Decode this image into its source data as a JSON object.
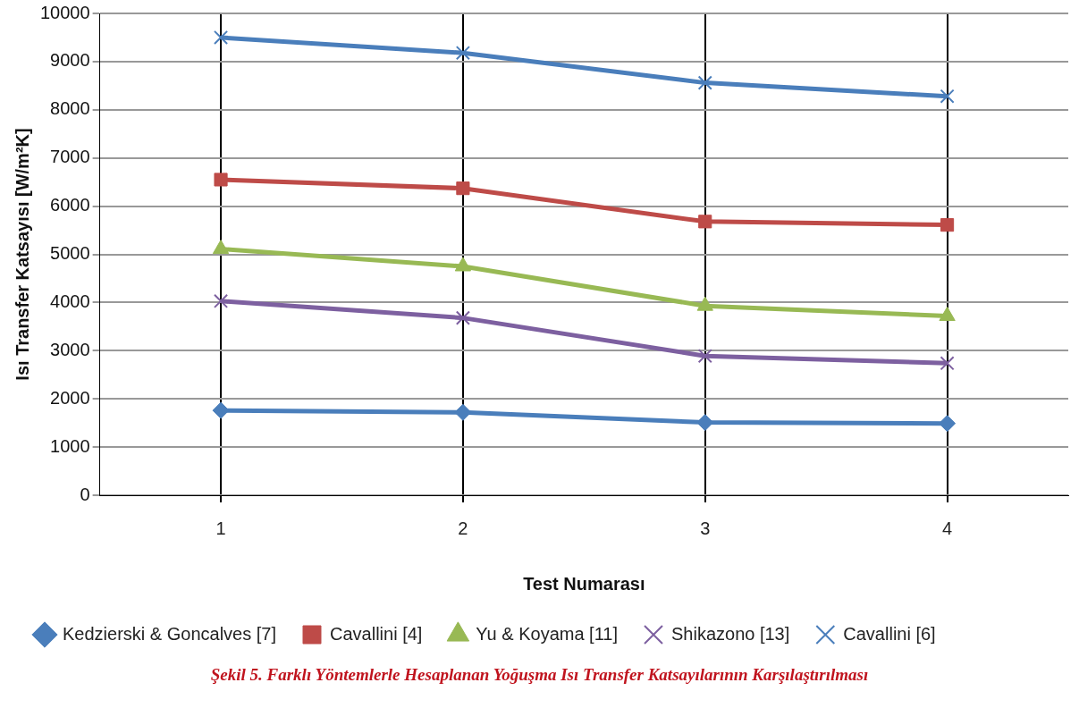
{
  "chart_data": {
    "type": "line",
    "xlabel": "Test Numarası",
    "ylabel": "Isı Transfer Katsayısı [W/m²K]",
    "categories": [
      "1",
      "2",
      "3",
      "4"
    ],
    "series": [
      {
        "name": "Kedzierski & Goncalves [7]",
        "color": "#4a7ebb",
        "marker": "diamond",
        "values": [
          1760,
          1720,
          1510,
          1490
        ]
      },
      {
        "name": "Cavallini [4]",
        "color": "#be4b48",
        "marker": "square",
        "values": [
          6550,
          6370,
          5680,
          5610
        ]
      },
      {
        "name": "Yu & Koyama [11]",
        "color": "#98b954",
        "marker": "triangle",
        "values": [
          5110,
          4750,
          3930,
          3720
        ]
      },
      {
        "name": "Shikazono [13]",
        "color": "#7d60a0",
        "marker": "cross",
        "values": [
          4030,
          3680,
          2890,
          2740
        ]
      },
      {
        "name": "Cavallini [6]",
        "color": "#4a7ebb",
        "marker": "cross",
        "values": [
          9500,
          9180,
          8560,
          8280
        ]
      }
    ],
    "ylim": [
      0,
      10000
    ],
    "yticks": [
      0,
      1000,
      2000,
      3000,
      4000,
      5000,
      6000,
      7000,
      8000,
      9000,
      10000
    ],
    "grid": true,
    "legend": "bottom",
    "annotations": [
      "Şekil 5. Farklı Yöntemlerle Hesaplanan Yoğuşma Isı Transfer Katsayılarının Karşılaştırılması"
    ]
  }
}
